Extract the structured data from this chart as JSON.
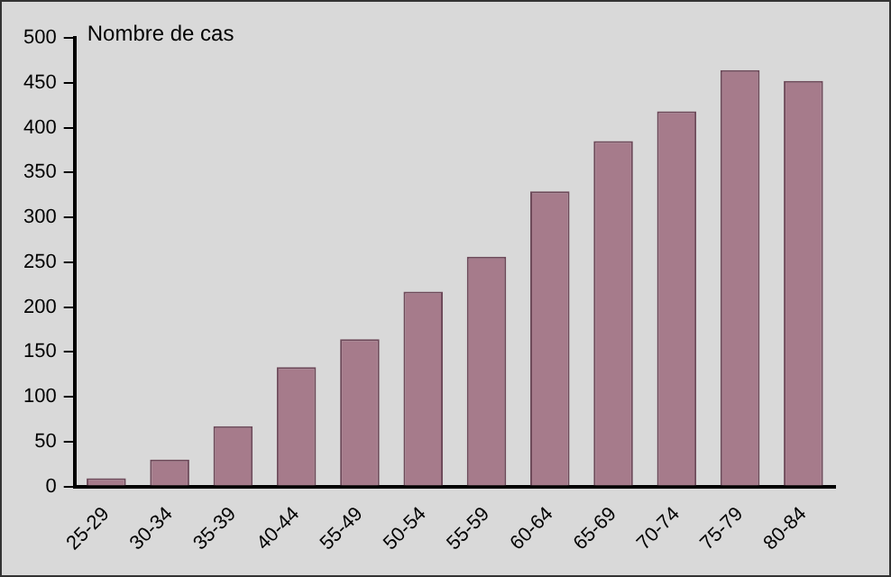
{
  "chart_data": {
    "type": "bar",
    "ylabel": "Nombre de cas",
    "categories": [
      "25-29",
      "30-34",
      "35-39",
      "40-44",
      "55-49",
      "50-54",
      "55-59",
      "60-64",
      "65-69",
      "70-74",
      "75-79",
      "80-84"
    ],
    "values": [
      9,
      30,
      67,
      133,
      164,
      217,
      256,
      329,
      385,
      418,
      464,
      452
    ],
    "color": "#a67b8b",
    "ylim": [
      0,
      500
    ],
    "yticks": [
      0,
      50,
      100,
      150,
      200,
      250,
      300,
      350,
      400,
      450,
      500
    ],
    "grid": false,
    "legend": false
  }
}
